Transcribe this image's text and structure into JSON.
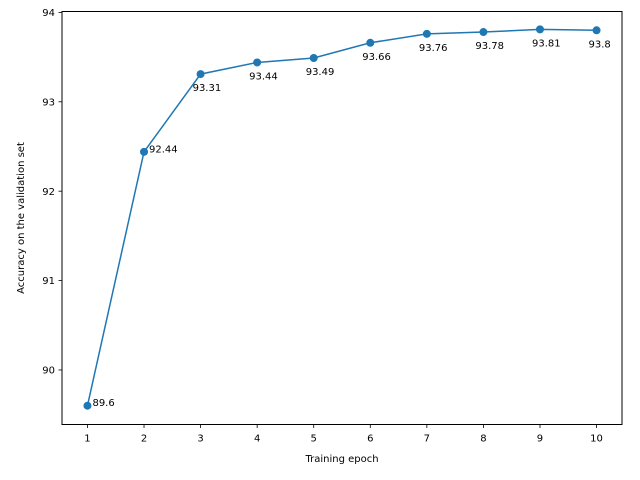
{
  "chart_data": {
    "type": "line",
    "xlabel": "Training epoch",
    "ylabel": "Accuracy on the validation set",
    "x": [
      1,
      2,
      3,
      4,
      5,
      6,
      7,
      8,
      9,
      10
    ],
    "series": [
      {
        "values": [
          89.6,
          92.44,
          93.31,
          93.44,
          93.49,
          93.66,
          93.76,
          93.78,
          93.81,
          93.8
        ],
        "labels": [
          "89.6",
          "92.44",
          "93.31",
          "93.44",
          "93.49",
          "93.66",
          "93.76",
          "93.78",
          "93.81",
          "93.8"
        ],
        "color": "#1f77b4",
        "marker": "circle"
      }
    ],
    "xticks": [
      "1",
      "2",
      "3",
      "4",
      "5",
      "6",
      "7",
      "8",
      "9",
      "10"
    ],
    "yticks": [
      "90",
      "91",
      "92",
      "93",
      "94"
    ],
    "xlim": [
      0.55,
      10.45
    ],
    "ylim": [
      89.39,
      94.01
    ],
    "grid": false,
    "legend": false
  }
}
